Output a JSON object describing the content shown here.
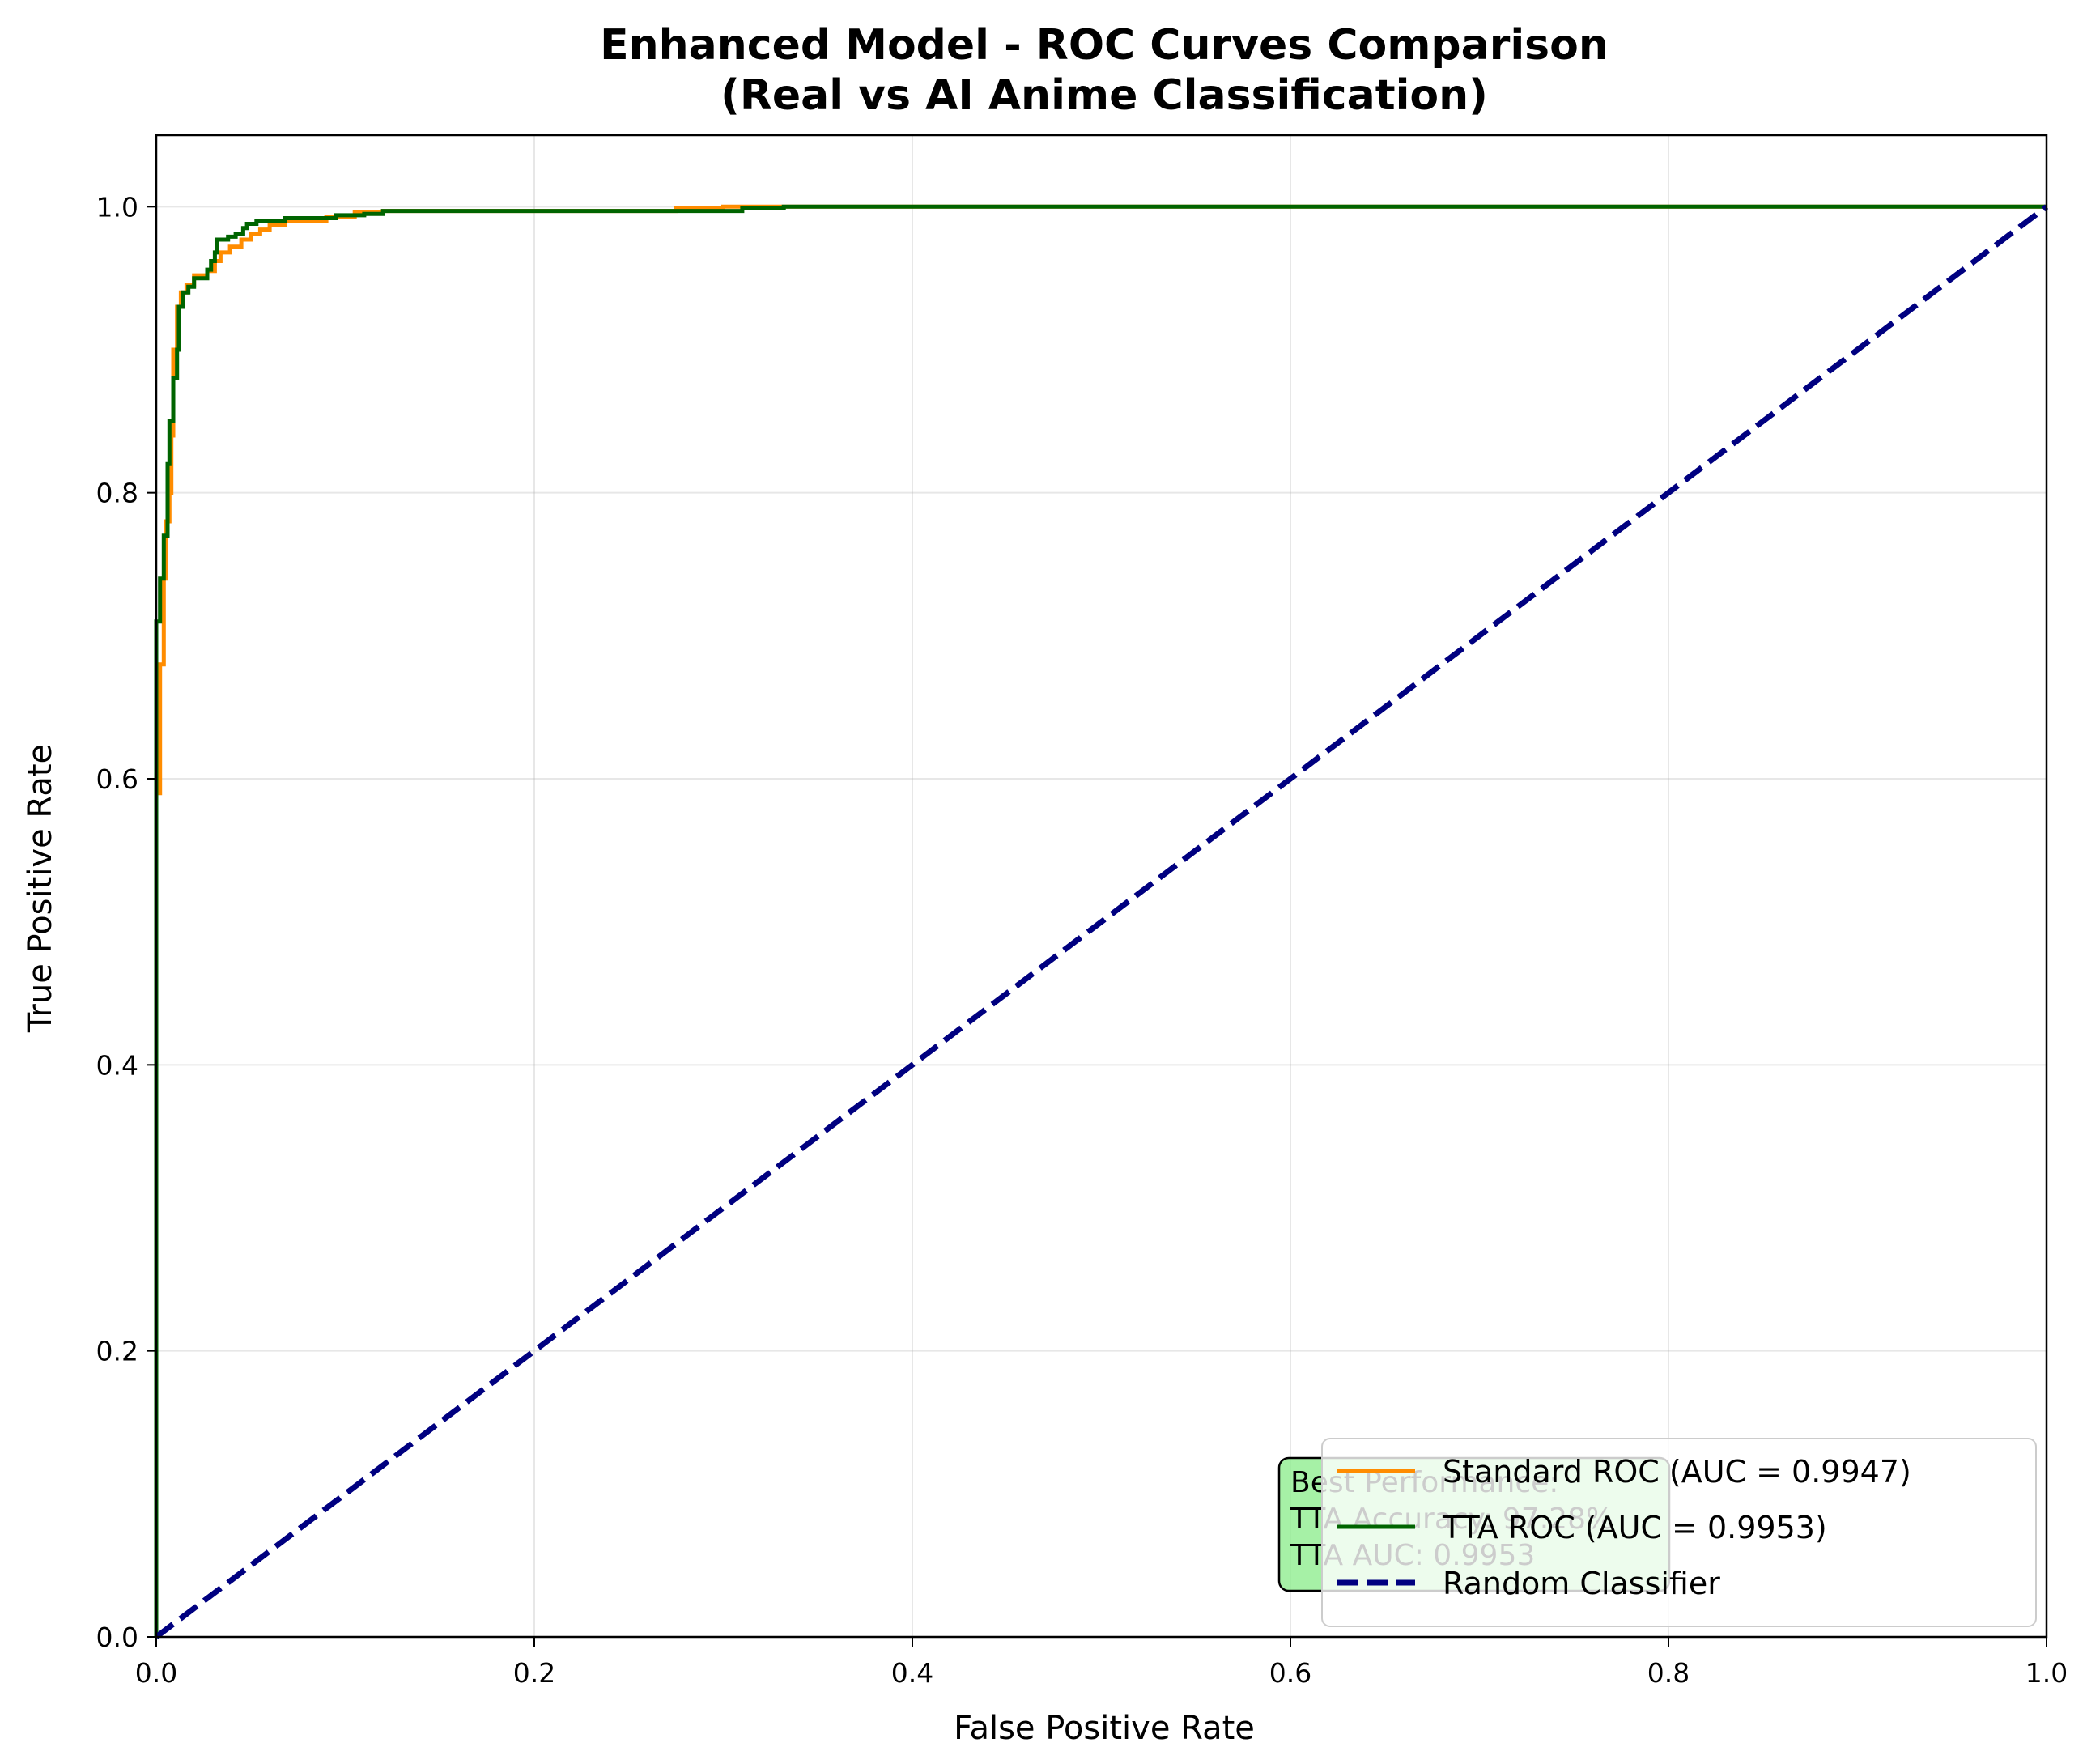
{
  "chart_data": {
    "type": "line",
    "title": "Enhanced Model - ROC Curves Comparison",
    "subtitle": "(Real vs AI Anime Classification)",
    "xlabel": "False Positive Rate",
    "ylabel": "True Positive Rate",
    "xlim": [
      0,
      1
    ],
    "ylim": [
      0,
      1.05
    ],
    "xticks": [
      "0.0",
      "0.2",
      "0.4",
      "0.6",
      "0.8",
      "1.0"
    ],
    "yticks": [
      "0.0",
      "0.2",
      "0.4",
      "0.6",
      "0.8",
      "1.0"
    ],
    "grid": true,
    "legend_position": "lower right",
    "series": [
      {
        "name": "Standard ROC (AUC = 0.9947)",
        "color": "#ff8c00",
        "style": "solid",
        "points": [
          [
            0,
            0
          ],
          [
            0,
            0.59
          ],
          [
            0.002,
            0.59
          ],
          [
            0.002,
            0.68
          ],
          [
            0.004,
            0.68
          ],
          [
            0.004,
            0.74
          ],
          [
            0.005,
            0.74
          ],
          [
            0.005,
            0.78
          ],
          [
            0.007,
            0.78
          ],
          [
            0.007,
            0.8
          ],
          [
            0.008,
            0.8
          ],
          [
            0.008,
            0.84
          ],
          [
            0.009,
            0.84
          ],
          [
            0.009,
            0.9
          ],
          [
            0.011,
            0.9
          ],
          [
            0.011,
            0.93
          ],
          [
            0.013,
            0.93
          ],
          [
            0.013,
            0.94
          ],
          [
            0.016,
            0.94
          ],
          [
            0.016,
            0.945
          ],
          [
            0.02,
            0.945
          ],
          [
            0.02,
            0.952
          ],
          [
            0.027,
            0.952
          ],
          [
            0.027,
            0.955
          ],
          [
            0.031,
            0.955
          ],
          [
            0.031,
            0.962
          ],
          [
            0.034,
            0.962
          ],
          [
            0.034,
            0.968
          ],
          [
            0.039,
            0.968
          ],
          [
            0.039,
            0.972
          ],
          [
            0.045,
            0.972
          ],
          [
            0.045,
            0.977
          ],
          [
            0.05,
            0.977
          ],
          [
            0.05,
            0.981
          ],
          [
            0.055,
            0.981
          ],
          [
            0.055,
            0.984
          ],
          [
            0.06,
            0.984
          ],
          [
            0.06,
            0.987
          ],
          [
            0.068,
            0.987
          ],
          [
            0.068,
            0.99
          ],
          [
            0.09,
            0.99
          ],
          [
            0.09,
            0.993
          ],
          [
            0.105,
            0.993
          ],
          [
            0.105,
            0.996
          ],
          [
            0.12,
            0.996
          ],
          [
            0.12,
            0.997
          ],
          [
            0.275,
            0.997
          ],
          [
            0.275,
            0.999
          ],
          [
            0.3,
            0.999
          ],
          [
            0.3,
            1.0
          ],
          [
            1.0,
            1.0
          ]
        ]
      },
      {
        "name": "TTA ROC (AUC = 0.9953)",
        "color": "#006400",
        "style": "solid",
        "points": [
          [
            0,
            0
          ],
          [
            0,
            0.71
          ],
          [
            0.002,
            0.71
          ],
          [
            0.002,
            0.74
          ],
          [
            0.004,
            0.74
          ],
          [
            0.004,
            0.77
          ],
          [
            0.006,
            0.77
          ],
          [
            0.006,
            0.82
          ],
          [
            0.007,
            0.82
          ],
          [
            0.007,
            0.85
          ],
          [
            0.009,
            0.85
          ],
          [
            0.009,
            0.88
          ],
          [
            0.011,
            0.88
          ],
          [
            0.011,
            0.9
          ],
          [
            0.012,
            0.9
          ],
          [
            0.012,
            0.93
          ],
          [
            0.014,
            0.93
          ],
          [
            0.014,
            0.94
          ],
          [
            0.017,
            0.94
          ],
          [
            0.017,
            0.944
          ],
          [
            0.02,
            0.944
          ],
          [
            0.02,
            0.95
          ],
          [
            0.027,
            0.95
          ],
          [
            0.027,
            0.956
          ],
          [
            0.029,
            0.956
          ],
          [
            0.029,
            0.962
          ],
          [
            0.031,
            0.962
          ],
          [
            0.031,
            0.968
          ],
          [
            0.032,
            0.968
          ],
          [
            0.032,
            0.977
          ],
          [
            0.038,
            0.977
          ],
          [
            0.038,
            0.979
          ],
          [
            0.042,
            0.979
          ],
          [
            0.042,
            0.981
          ],
          [
            0.046,
            0.981
          ],
          [
            0.046,
            0.985
          ],
          [
            0.048,
            0.985
          ],
          [
            0.048,
            0.988
          ],
          [
            0.053,
            0.988
          ],
          [
            0.053,
            0.99
          ],
          [
            0.068,
            0.99
          ],
          [
            0.068,
            0.992
          ],
          [
            0.095,
            0.992
          ],
          [
            0.095,
            0.994
          ],
          [
            0.11,
            0.994
          ],
          [
            0.11,
            0.995
          ],
          [
            0.12,
            0.995
          ],
          [
            0.12,
            0.997
          ],
          [
            0.31,
            0.997
          ],
          [
            0.31,
            0.999
          ],
          [
            0.332,
            0.999
          ],
          [
            0.332,
            1.0
          ],
          [
            1.0,
            1.0
          ]
        ]
      },
      {
        "name": "Random Classifier",
        "color": "#000080",
        "style": "dashed",
        "points": [
          [
            0,
            0
          ],
          [
            1,
            1
          ]
        ]
      }
    ],
    "annotation": {
      "lines": [
        "Best Performance:",
        "TTA Accuracy: 97.28%",
        "TTA AUC: 0.9953"
      ],
      "background": "#90ee90",
      "anchor": [
        0.6,
        0.14
      ]
    }
  }
}
